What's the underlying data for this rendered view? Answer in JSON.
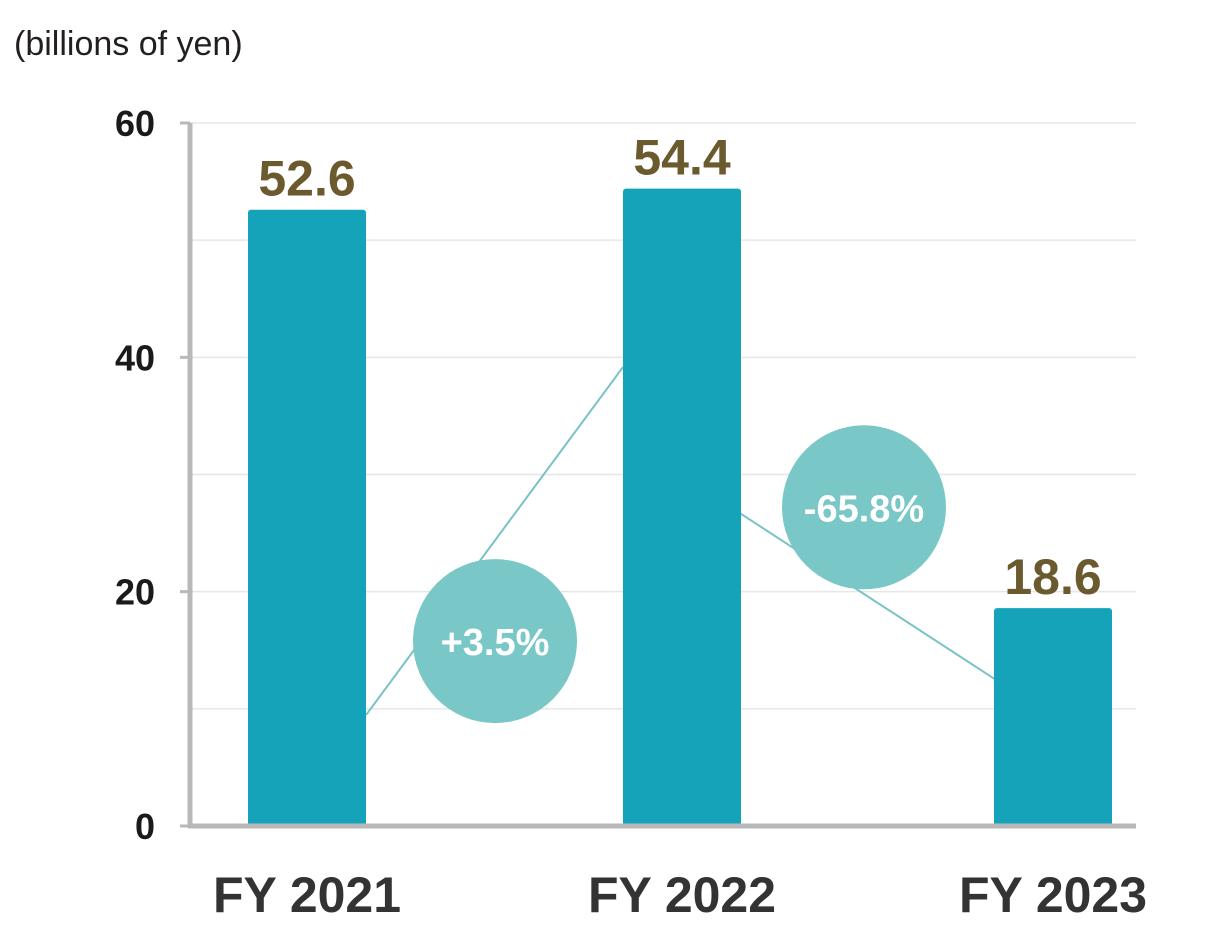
{
  "chart_data": {
    "type": "bar",
    "unit_label": "(billions of yen)",
    "title": "",
    "xlabel": "",
    "ylabel": "",
    "categories": [
      "FY 2021",
      "FY 2022",
      "FY 2023"
    ],
    "values": [
      52.6,
      54.4,
      18.6
    ],
    "value_labels": [
      "52.6",
      "54.4",
      "18.6"
    ],
    "ylim": [
      0,
      60
    ],
    "yticks": [
      0,
      20,
      40,
      60
    ],
    "ytick_labels": [
      "0",
      "20",
      "40",
      "60"
    ],
    "minor_grid": [
      10,
      30,
      50
    ],
    "grid": true,
    "changes": [
      {
        "from": "FY 2021",
        "to": "FY 2022",
        "label": "+3.5%"
      },
      {
        "from": "FY 2022",
        "to": "FY 2023",
        "label": "-65.8%"
      }
    ],
    "colors": {
      "bar": "#15a3b9",
      "value_label": "#6b5a2e",
      "change_bubble": "#79c7c6",
      "connector": "#79c2c6",
      "axis": "#b8b8b8",
      "grid": "#e6e6e6"
    }
  }
}
